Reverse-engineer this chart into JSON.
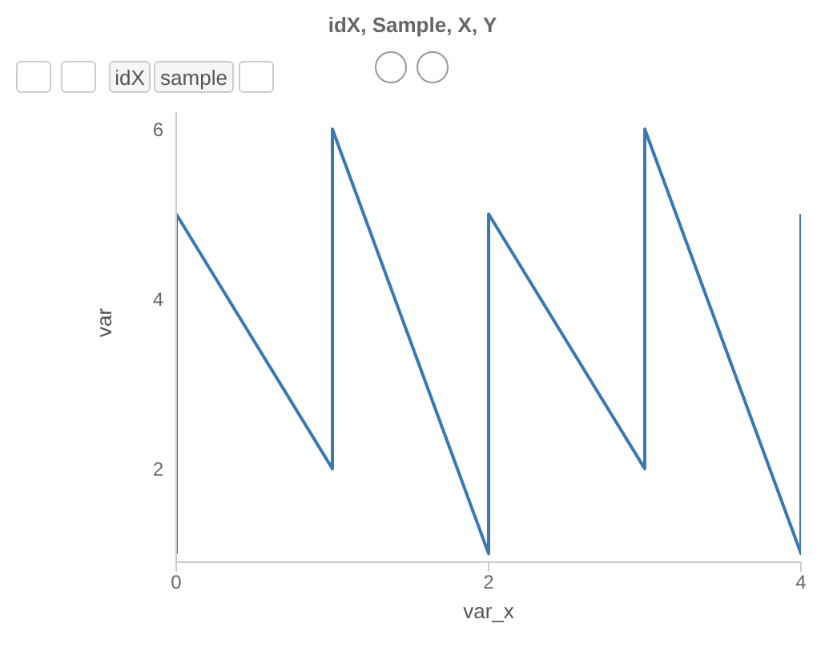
{
  "chart_data": {
    "type": "line",
    "title": "idX, Sample, X, Y",
    "xlabel": "var_x",
    "ylabel": "var",
    "annotations": [
      "idX",
      "sample"
    ],
    "x": [
      0,
      0,
      1,
      1,
      2,
      2,
      3,
      3,
      4,
      4
    ],
    "series": [
      {
        "color": "#3b78b3",
        "values": [
          1,
          5,
          2,
          6,
          1,
          5,
          2,
          6,
          1,
          5
        ]
      }
    ],
    "xlim": [
      0,
      4
    ],
    "xticks": [
      0,
      2,
      4
    ],
    "ylim": [
      0.9,
      6.2
    ],
    "yticks": [
      2,
      4,
      6
    ],
    "grid": false,
    "legend": false,
    "marker": "none",
    "line_style": "solid"
  }
}
